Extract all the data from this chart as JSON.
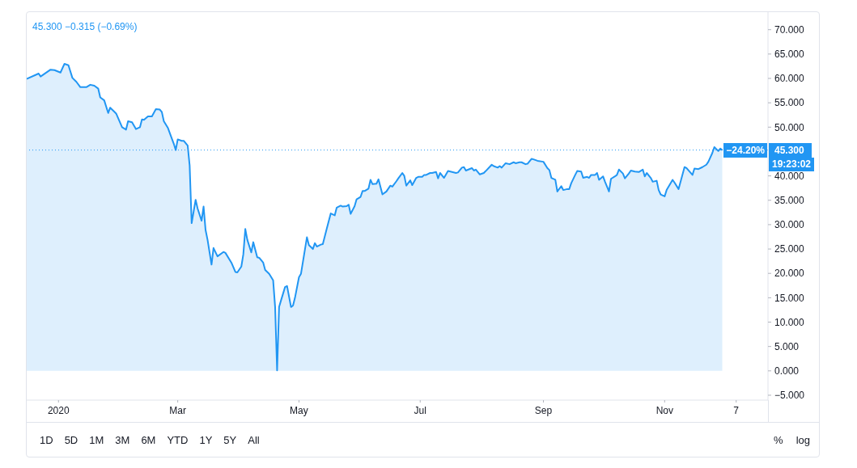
{
  "chart_data": {
    "type": "area",
    "title": "45.300 −0.315 (−0.69%)",
    "annotations": [
      {
        "text": "−24.20%",
        "y": 45.3
      },
      "19:23:02",
      "1D",
      "5D",
      "1M",
      "3M",
      "6M",
      "YTD",
      "1Y",
      "5Y",
      "All",
      "%",
      "log"
    ],
    "x": [
      "2019-12-16",
      "2019-12-22",
      "2019-12-23",
      "2019-12-28",
      "2019-12-30",
      "2020-01-02",
      "2020-01-04",
      "2020-01-06",
      "2020-01-08",
      "2020-01-10",
      "2020-01-12",
      "2020-01-15",
      "2020-01-17",
      "2020-01-19",
      "2020-01-21",
      "2020-01-22",
      "2020-01-24",
      "2020-01-26",
      "2020-01-27",
      "2020-01-29",
      "2020-01-30",
      "2020-02-02",
      "2020-02-04",
      "2020-02-05",
      "2020-02-07",
      "2020-02-09",
      "2020-02-11",
      "2020-02-12",
      "2020-02-13",
      "2020-02-15",
      "2020-02-17",
      "2020-02-19",
      "2020-02-21",
      "2020-02-22",
      "2020-02-23",
      "2020-02-25",
      "2020-02-26",
      "2020-02-28",
      "2020-02-29",
      "2020-03-01",
      "2020-03-03",
      "2020-03-04",
      "2020-03-06",
      "2020-03-07",
      "2020-03-08",
      "2020-03-10",
      "2020-03-11",
      "2020-03-13",
      "2020-03-14",
      "2020-03-15",
      "2020-03-16",
      "2020-03-18",
      "2020-03-19",
      "2020-03-21",
      "2020-03-24",
      "2020-03-25",
      "2020-03-28",
      "2020-03-30",
      "2020-03-31",
      "2020-04-02",
      "2020-04-03",
      "2020-04-04",
      "2020-04-05",
      "2020-04-07",
      "2020-04-08",
      "2020-04-10",
      "2020-04-11",
      "2020-04-13",
      "2020-04-14",
      "2020-04-16",
      "2020-04-18",
      "2020-04-19",
      "2020-04-20",
      "2020-04-21",
      "2020-04-22",
      "2020-04-24",
      "2020-04-25",
      "2020-04-27",
      "2020-04-28",
      "2020-04-29",
      "2020-05-01",
      "2020-05-02",
      "2020-05-05",
      "2020-05-06",
      "2020-05-08",
      "2020-05-09",
      "2020-05-10",
      "2020-05-12",
      "2020-05-13",
      "2020-05-15",
      "2020-05-17",
      "2020-05-19",
      "2020-05-20",
      "2020-05-22",
      "2020-05-23",
      "2020-05-25",
      "2020-05-26",
      "2020-05-27",
      "2020-05-29",
      "2020-05-30",
      "2020-06-01",
      "2020-06-02",
      "2020-06-03",
      "2020-06-05",
      "2020-06-06",
      "2020-06-07",
      "2020-06-09",
      "2020-06-10",
      "2020-06-12",
      "2020-06-14",
      "2020-06-16",
      "2020-06-17",
      "2020-06-19",
      "2020-06-20",
      "2020-06-22",
      "2020-06-23",
      "2020-06-24",
      "2020-06-26",
      "2020-06-27",
      "2020-06-29",
      "2020-06-30",
      "2020-07-02",
      "2020-07-03",
      "2020-07-04",
      "2020-07-06",
      "2020-07-07",
      "2020-07-09",
      "2020-07-10",
      "2020-07-11",
      "2020-07-13",
      "2020-07-15",
      "2020-07-17",
      "2020-07-19",
      "2020-07-20",
      "2020-07-22",
      "2020-07-23",
      "2020-07-24",
      "2020-07-27",
      "2020-07-28",
      "2020-07-29",
      "2020-07-31",
      "2020-08-02",
      "2020-08-03",
      "2020-08-06",
      "2020-08-07",
      "2020-08-09",
      "2020-08-10",
      "2020-08-11",
      "2020-08-13",
      "2020-08-15",
      "2020-08-17",
      "2020-08-18",
      "2020-08-20",
      "2020-08-21",
      "2020-08-23",
      "2020-08-24",
      "2020-08-26",
      "2020-08-27",
      "2020-08-29",
      "2020-09-01",
      "2020-09-03",
      "2020-09-04",
      "2020-09-05",
      "2020-09-07",
      "2020-09-08",
      "2020-09-10",
      "2020-09-11",
      "2020-09-13",
      "2020-09-14",
      "2020-09-15",
      "2020-09-17",
      "2020-09-18",
      "2020-09-20",
      "2020-09-21",
      "2020-09-23",
      "2020-09-24",
      "2020-09-25",
      "2020-09-27",
      "2020-09-28",
      "2020-09-29",
      "2020-10-01",
      "2020-10-02",
      "2020-10-04",
      "2020-10-05",
      "2020-10-07",
      "2020-10-08",
      "2020-10-09",
      "2020-10-11",
      "2020-10-12",
      "2020-10-14",
      "2020-10-15",
      "2020-10-17",
      "2020-10-19",
      "2020-10-21",
      "2020-10-22",
      "2020-10-23",
      "2020-10-25",
      "2020-10-26",
      "2020-10-28",
      "2020-10-29",
      "2020-10-30",
      "2020-11-01",
      "2020-11-02",
      "2020-11-05",
      "2020-11-06",
      "2020-11-08",
      "2020-11-11",
      "2020-11-12",
      "2020-11-15",
      "2020-11-16",
      "2020-11-18",
      "2020-11-20",
      "2020-11-22",
      "2020-11-23",
      "2020-11-25",
      "2020-11-26",
      "2020-11-28",
      "2020-11-29",
      "2020-11-30"
    ],
    "values": [
      59.9,
      61.0,
      60.4,
      61.8,
      61.7,
      61.2,
      63.0,
      62.7,
      60.1,
      59.3,
      58.2,
      58.2,
      58.7,
      58.5,
      57.9,
      56.1,
      55.5,
      52.9,
      54.0,
      53.2,
      52.8,
      50.0,
      49.5,
      51.2,
      51.0,
      49.6,
      50.0,
      51.6,
      51.5,
      52.2,
      52.2,
      53.7,
      53.6,
      53.1,
      51.2,
      49.9,
      48.8,
      46.6,
      45.3,
      47.5,
      47.2,
      47.2,
      46.2,
      42.1,
      30.3,
      35.1,
      33.3,
      30.8,
      33.7,
      28.9,
      26.9,
      21.8,
      25.2,
      23.5,
      24.4,
      24.2,
      22.2,
      20.3,
      20.2,
      21.4,
      23.9,
      29.1,
      26.9,
      24.3,
      26.4,
      23.3,
      23.2,
      22.2,
      20.7,
      19.9,
      18.6,
      13.1,
      0.1,
      13.1,
      14.5,
      17.2,
      17.4,
      13.1,
      13.4,
      15.0,
      19.2,
      19.9,
      27.4,
      25.8,
      25.0,
      26.2,
      25.5,
      25.9,
      26.0,
      29.2,
      32.3,
      31.9,
      33.5,
      33.9,
      33.7,
      33.8,
      34.1,
      32.2,
      33.8,
      35.2,
      35.7,
      36.9,
      36.9,
      37.4,
      39.2,
      38.3,
      38.4,
      39.3,
      36.2,
      36.8,
      38.0,
      37.8,
      38.9,
      39.5,
      40.6,
      40.0,
      38.0,
      39.1,
      38.1,
      39.6,
      39.8,
      39.8,
      40.2,
      40.2,
      40.6,
      40.6,
      40.8,
      39.5,
      40.6,
      39.6,
      41.0,
      40.8,
      40.6,
      40.7,
      41.7,
      41.8,
      41.1,
      41.6,
      41.1,
      41.3,
      40.3,
      40.6,
      41.0,
      42.3,
      42.0,
      41.7,
      42.0,
      41.7,
      42.6,
      42.4,
      42.8,
      42.6,
      42.8,
      42.8,
      42.4,
      42.5,
      43.5,
      43.4,
      43.1,
      42.9,
      41.6,
      41.2,
      39.6,
      39.2,
      36.8,
      37.9,
      37.1,
      37.3,
      37.3,
      38.5,
      40.2,
      41.0,
      40.9,
      39.6,
      39.8,
      39.6,
      40.2,
      40.2,
      40.6,
      39.2,
      39.9,
      38.8,
      36.8,
      39.4,
      39.9,
      40.2,
      41.3,
      40.5,
      39.5,
      40.5,
      41.1,
      40.9,
      40.8,
      41.3,
      39.9,
      40.6,
      39.6,
      38.8,
      39.0,
      37.1,
      36.2,
      35.8,
      37.1,
      39.2,
      38.6,
      37.3,
      41.8,
      41.6,
      40.2,
      41.5,
      41.4,
      41.8,
      42.3,
      42.9,
      44.7,
      45.9,
      45.1,
      45.6,
      45.3
    ],
    "color": "#2196f3",
    "xlim": [
      "2019-12-16",
      "2020-12-23"
    ],
    "xticks": [
      {
        "value": "2020-01-01",
        "label": "2020"
      },
      {
        "value": "2020-03-01",
        "label": "Mar"
      },
      {
        "value": "2020-05-01",
        "label": "May"
      },
      {
        "value": "2020-07-01",
        "label": "Jul"
      },
      {
        "value": "2020-09-01",
        "label": "Sep"
      },
      {
        "value": "2020-11-01",
        "label": "Nov"
      },
      {
        "value": "2020-12-07",
        "label": "7"
      }
    ],
    "ylim": [
      -6,
      73.6
    ],
    "yticks": [
      {
        "value": 70,
        "label": "70.000"
      },
      {
        "value": 65,
        "label": "65.000"
      },
      {
        "value": 60,
        "label": "60.000"
      },
      {
        "value": 55,
        "label": "55.000"
      },
      {
        "value": 50,
        "label": "50.000"
      },
      {
        "value": 40,
        "label": "40.000"
      },
      {
        "value": 35,
        "label": "35.000"
      },
      {
        "value": 30,
        "label": "30.000"
      },
      {
        "value": 25,
        "label": "25.000"
      },
      {
        "value": 20,
        "label": "20.000"
      },
      {
        "value": 15,
        "label": "15.000"
      },
      {
        "value": 10,
        "label": "10.000"
      },
      {
        "value": 5,
        "label": "5.000"
      },
      {
        "value": 0,
        "label": "0.000"
      },
      {
        "value": -5,
        "label": "−5.000"
      }
    ],
    "ref_lines": [
      {
        "axis": "y",
        "value": 45.3,
        "label": "45.300",
        "color": "#2196f3",
        "line_style": "dotted"
      }
    ]
  }
}
